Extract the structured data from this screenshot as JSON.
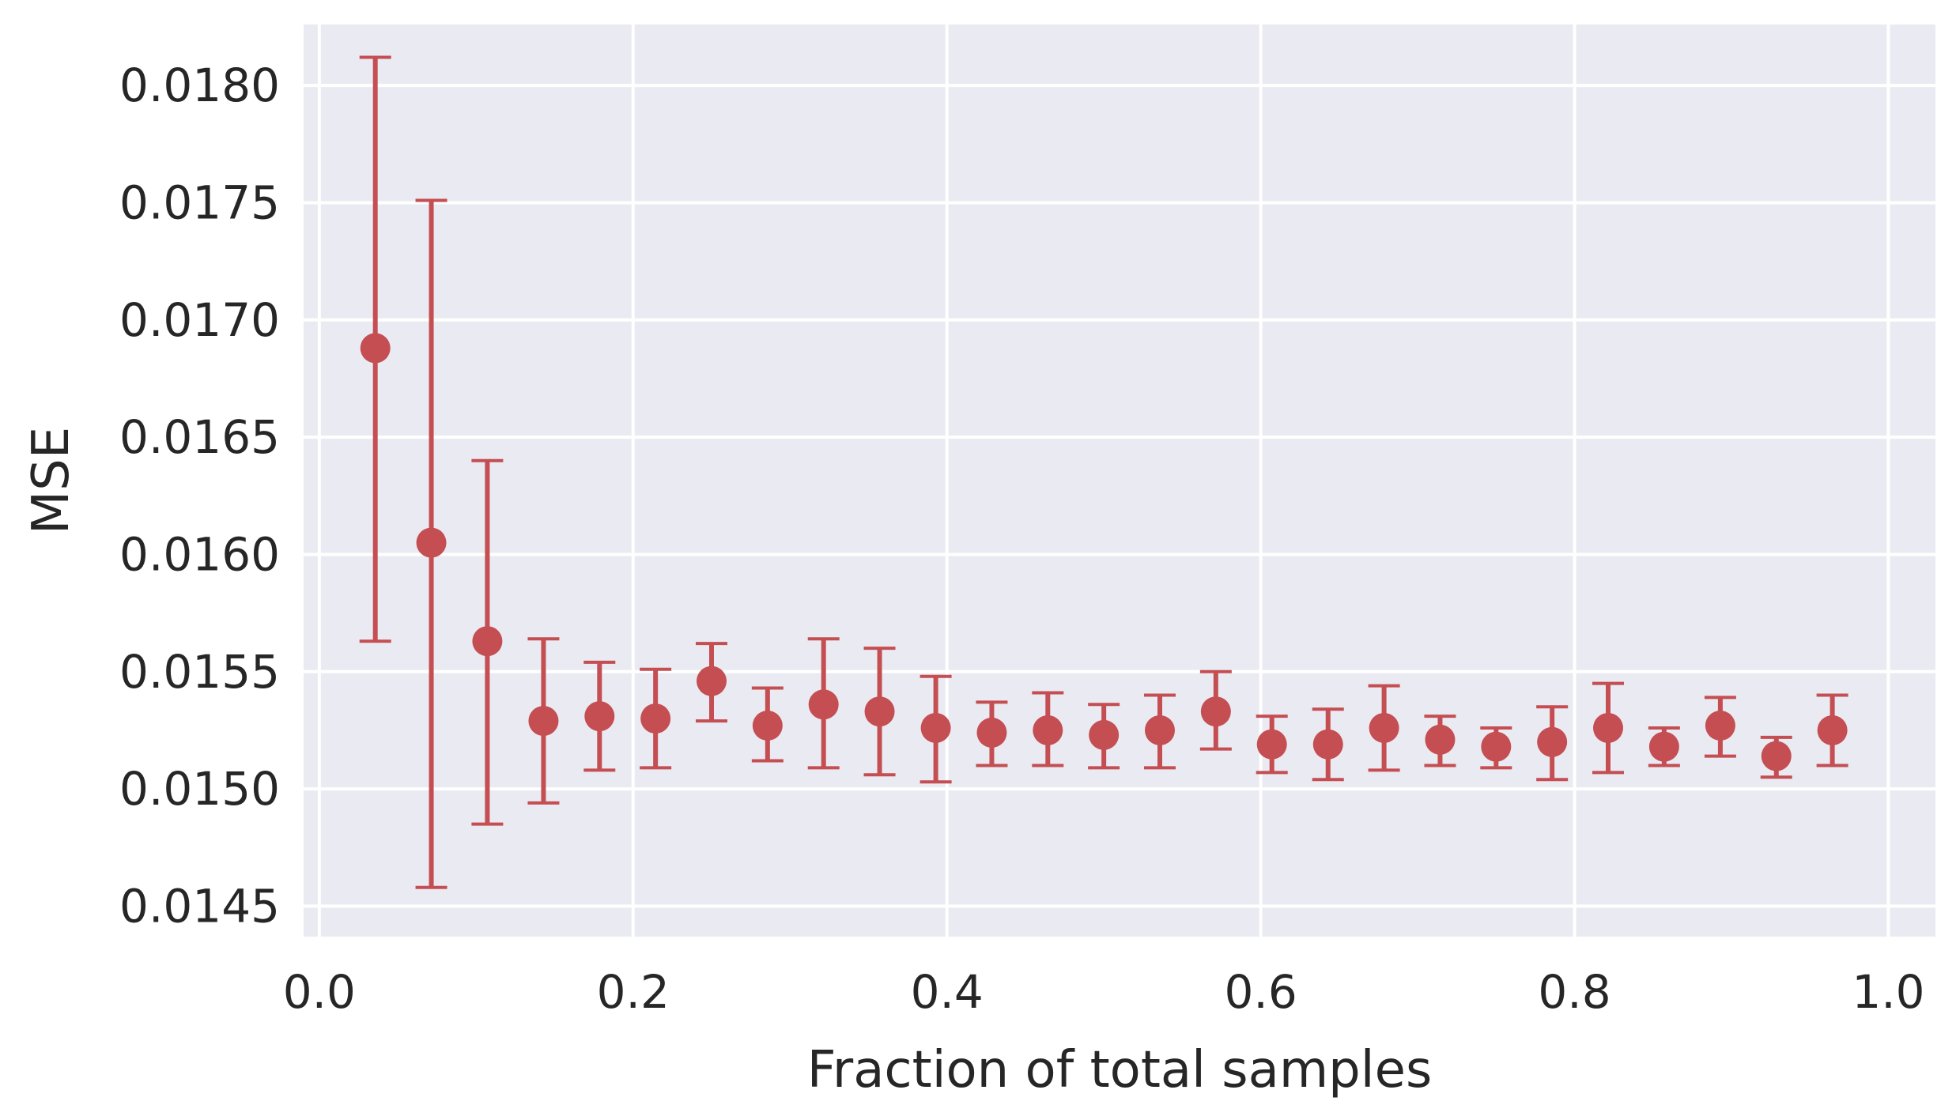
{
  "chart_data": {
    "type": "scatter",
    "title": "",
    "xlabel": "Fraction of total samples",
    "ylabel": "MSE",
    "xlim": [
      -0.01,
      1.03
    ],
    "ylim": [
      0.01437,
      0.01826
    ],
    "xticks": [
      0.0,
      0.2,
      0.4,
      0.6,
      0.8,
      1.0
    ],
    "xtick_labels": [
      "0.0",
      "0.2",
      "0.4",
      "0.6",
      "0.8",
      "1.0"
    ],
    "yticks": [
      0.0145,
      0.015,
      0.0155,
      0.016,
      0.0165,
      0.017,
      0.0175,
      0.018
    ],
    "ytick_labels": [
      "0.0145",
      "0.0150",
      "0.0155",
      "0.0160",
      "0.0165",
      "0.0170",
      "0.0175",
      "0.0180"
    ],
    "grid": true,
    "colors": {
      "background": "#eaeaf2",
      "grid": "#ffffff",
      "series": "#c44e52",
      "text": "#262626"
    },
    "series": [
      {
        "points": [
          {
            "x": 0.0357,
            "y": 0.01688,
            "ylow": 0.01563,
            "yhigh": 0.01812
          },
          {
            "x": 0.0714,
            "y": 0.01605,
            "ylow": 0.01458,
            "yhigh": 0.01751
          },
          {
            "x": 0.1071,
            "y": 0.01563,
            "ylow": 0.01485,
            "yhigh": 0.0164
          },
          {
            "x": 0.1429,
            "y": 0.01529,
            "ylow": 0.01494,
            "yhigh": 0.01564
          },
          {
            "x": 0.1786,
            "y": 0.01531,
            "ylow": 0.01508,
            "yhigh": 0.01554
          },
          {
            "x": 0.2143,
            "y": 0.0153,
            "ylow": 0.01509,
            "yhigh": 0.01551
          },
          {
            "x": 0.25,
            "y": 0.01546,
            "ylow": 0.01529,
            "yhigh": 0.01562
          },
          {
            "x": 0.2857,
            "y": 0.01527,
            "ylow": 0.01512,
            "yhigh": 0.01543
          },
          {
            "x": 0.3214,
            "y": 0.01536,
            "ylow": 0.01509,
            "yhigh": 0.01564
          },
          {
            "x": 0.3571,
            "y": 0.01533,
            "ylow": 0.01506,
            "yhigh": 0.0156
          },
          {
            "x": 0.3929,
            "y": 0.01526,
            "ylow": 0.01503,
            "yhigh": 0.01548
          },
          {
            "x": 0.4286,
            "y": 0.01524,
            "ylow": 0.0151,
            "yhigh": 0.01537
          },
          {
            "x": 0.4643,
            "y": 0.01525,
            "ylow": 0.0151,
            "yhigh": 0.01541
          },
          {
            "x": 0.5,
            "y": 0.01523,
            "ylow": 0.01509,
            "yhigh": 0.01536
          },
          {
            "x": 0.5357,
            "y": 0.01525,
            "ylow": 0.01509,
            "yhigh": 0.0154
          },
          {
            "x": 0.5714,
            "y": 0.01533,
            "ylow": 0.01517,
            "yhigh": 0.0155
          },
          {
            "x": 0.6071,
            "y": 0.01519,
            "ylow": 0.01507,
            "yhigh": 0.01531
          },
          {
            "x": 0.6429,
            "y": 0.01519,
            "ylow": 0.01504,
            "yhigh": 0.01534
          },
          {
            "x": 0.6786,
            "y": 0.01526,
            "ylow": 0.01508,
            "yhigh": 0.01544
          },
          {
            "x": 0.7143,
            "y": 0.01521,
            "ylow": 0.0151,
            "yhigh": 0.01531
          },
          {
            "x": 0.75,
            "y": 0.01518,
            "ylow": 0.01509,
            "yhigh": 0.01526
          },
          {
            "x": 0.7857,
            "y": 0.0152,
            "ylow": 0.01504,
            "yhigh": 0.01535
          },
          {
            "x": 0.8214,
            "y": 0.01526,
            "ylow": 0.01507,
            "yhigh": 0.01545
          },
          {
            "x": 0.8571,
            "y": 0.01518,
            "ylow": 0.0151,
            "yhigh": 0.01526
          },
          {
            "x": 0.8929,
            "y": 0.01527,
            "ylow": 0.01514,
            "yhigh": 0.01539
          },
          {
            "x": 0.9286,
            "y": 0.01514,
            "ylow": 0.01505,
            "yhigh": 0.01522
          },
          {
            "x": 0.9643,
            "y": 0.01525,
            "ylow": 0.0151,
            "yhigh": 0.0154
          }
        ]
      }
    ]
  }
}
